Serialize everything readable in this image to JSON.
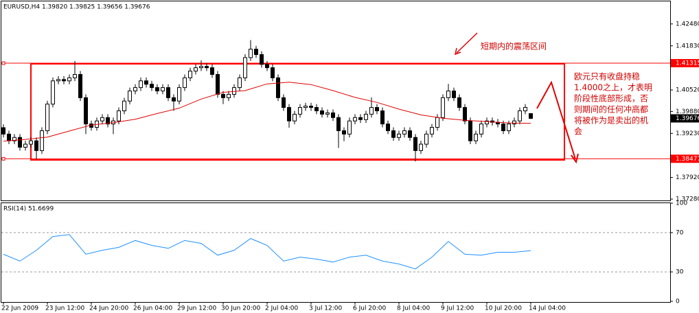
{
  "chart_data": [
    {
      "type": "candlestick",
      "title": "EURUSD,H4  1.39820 1.39825 1.39656 1.39676",
      "categories": [
        "22 Jun 2009",
        null,
        null,
        null,
        null,
        null,
        null,
        null,
        "23 Jun 12:00",
        null,
        null,
        null,
        null,
        null,
        null,
        null,
        "24 Jun 20:00",
        null,
        null,
        null,
        null,
        null,
        null,
        null,
        "26 Jun 04:00",
        null,
        null,
        null,
        null,
        null,
        null,
        null,
        "29 Jun 12:00",
        null,
        null,
        null,
        null,
        null,
        null,
        null,
        "30 Jun 20:00",
        null,
        null,
        null,
        null,
        null,
        null,
        null,
        "2 Jul 04:00",
        null,
        null,
        null,
        null,
        null,
        null,
        null,
        "3 Jul 12:00",
        null,
        null,
        null,
        null,
        null,
        null,
        null,
        "6 Jul 20:00",
        null,
        null,
        null,
        null,
        null,
        null,
        null,
        "8 Jul 04:00",
        null,
        null,
        null,
        null,
        null,
        null,
        null,
        "9 Jul 12:00",
        null,
        null,
        null,
        null,
        null,
        null,
        null,
        "10 Jul 20:00",
        null,
        null,
        null,
        null,
        null,
        null,
        null,
        "14 Jul 04:00"
      ],
      "open": [
        1.394,
        1.3921,
        1.3901,
        1.3911,
        1.3882,
        1.3891,
        1.3901,
        1.3872,
        1.3931,
        1.401,
        1.4079,
        1.4083,
        1.4079,
        1.4088,
        1.4098,
        1.4029,
        1.3951,
        1.3941,
        1.396,
        1.397,
        1.3951,
        1.396,
        1.399,
        1.4019,
        1.4049,
        1.4059,
        1.4079,
        1.4069,
        1.4059,
        1.4049,
        1.4059,
        1.4029,
        1.4019,
        1.4059,
        1.4088,
        1.4108,
        1.4118,
        1.4122,
        1.4118,
        1.4098,
        1.4039,
        1.4029,
        1.4039,
        1.4059,
        1.4088,
        1.4148,
        1.4173,
        1.4157,
        1.4128,
        1.4118,
        1.4088,
        1.4029,
        1.4,
        1.396,
        1.398,
        1.4,
        1.4004,
        1.4,
        1.399,
        1.398,
        1.3984,
        1.397,
        1.3931,
        1.3921,
        1.396,
        1.397,
        1.3964,
        1.398,
        1.4,
        1.399,
        1.3951,
        1.3931,
        1.3911,
        1.3921,
        1.3931,
        1.3911,
        1.3872,
        1.3891,
        1.3921,
        1.3941,
        1.397,
        1.4029,
        1.4049,
        1.4029,
        1.4,
        1.396,
        1.3901,
        1.3921,
        1.3951,
        1.396,
        1.3956,
        1.3951,
        1.3931,
        1.3951,
        1.396,
        1.399,
        1.3982
      ],
      "high": [
        1.395,
        1.3931,
        1.3921,
        1.3921,
        1.3901,
        1.3911,
        1.3911,
        1.3941,
        1.402,
        1.4089,
        1.4093,
        1.4093,
        1.4098,
        1.4138,
        1.4108,
        1.4039,
        1.3961,
        1.397,
        1.398,
        1.398,
        1.397,
        1.4,
        1.4029,
        1.4059,
        1.4069,
        1.4089,
        1.4089,
        1.4079,
        1.4069,
        1.4069,
        1.4069,
        1.4039,
        1.4069,
        1.4098,
        1.4118,
        1.4128,
        1.414,
        1.4132,
        1.4128,
        1.4108,
        1.4049,
        1.4049,
        1.4069,
        1.4098,
        1.4158,
        1.42,
        1.4183,
        1.4167,
        1.4138,
        1.4128,
        1.4098,
        1.4039,
        1.401,
        1.399,
        1.401,
        1.4014,
        1.4014,
        1.401,
        1.4,
        1.3994,
        1.3994,
        1.398,
        1.3941,
        1.397,
        1.398,
        1.398,
        1.399,
        1.403,
        1.401,
        1.4,
        1.3961,
        1.3941,
        1.3931,
        1.3941,
        1.3941,
        1.3921,
        1.3901,
        1.3931,
        1.3951,
        1.398,
        1.4039,
        1.407,
        1.4059,
        1.4039,
        1.401,
        1.397,
        1.3931,
        1.3961,
        1.397,
        1.397,
        1.3966,
        1.3961,
        1.3961,
        1.397,
        1.4,
        1.401,
        1.39825
      ],
      "low": [
        1.3911,
        1.3891,
        1.3891,
        1.3872,
        1.3872,
        1.3881,
        1.3846,
        1.3862,
        1.3921,
        1.4,
        1.4069,
        1.4069,
        1.4069,
        1.4078,
        1.4019,
        1.3921,
        1.3931,
        1.3931,
        1.395,
        1.3941,
        1.3921,
        1.395,
        1.398,
        1.4009,
        1.4039,
        1.4049,
        1.4059,
        1.4049,
        1.4039,
        1.4039,
        1.4019,
        1.399,
        1.4009,
        1.4049,
        1.4078,
        1.4098,
        1.4108,
        1.4108,
        1.4088,
        1.4029,
        1.401,
        1.4019,
        1.4029,
        1.4049,
        1.4078,
        1.4138,
        1.4147,
        1.4118,
        1.4108,
        1.4078,
        1.4019,
        1.399,
        1.394,
        1.395,
        1.397,
        1.399,
        1.399,
        1.398,
        1.397,
        1.397,
        1.396,
        1.388,
        1.39,
        1.3911,
        1.395,
        1.3954,
        1.3954,
        1.397,
        1.398,
        1.3941,
        1.3921,
        1.3901,
        1.3901,
        1.3911,
        1.3901,
        1.384,
        1.3862,
        1.3881,
        1.3911,
        1.3931,
        1.396,
        1.4019,
        1.4019,
        1.399,
        1.395,
        1.3891,
        1.3891,
        1.3911,
        1.3941,
        1.3946,
        1.3941,
        1.3921,
        1.3921,
        1.3941,
        1.395,
        1.398,
        1.39656
      ],
      "close": [
        1.3921,
        1.3901,
        1.3911,
        1.3882,
        1.3891,
        1.3901,
        1.3872,
        1.3931,
        1.401,
        1.4079,
        1.4083,
        1.4079,
        1.4088,
        1.4098,
        1.4029,
        1.3951,
        1.3941,
        1.396,
        1.397,
        1.3951,
        1.396,
        1.399,
        1.4019,
        1.4049,
        1.4059,
        1.4079,
        1.4069,
        1.4059,
        1.4049,
        1.4059,
        1.4029,
        1.4019,
        1.4059,
        1.4088,
        1.4108,
        1.4118,
        1.4122,
        1.4118,
        1.4098,
        1.4039,
        1.4029,
        1.4039,
        1.4059,
        1.4088,
        1.4148,
        1.4173,
        1.4157,
        1.4128,
        1.4118,
        1.4088,
        1.4029,
        1.4,
        1.396,
        1.398,
        1.4,
        1.4004,
        1.4,
        1.399,
        1.398,
        1.3984,
        1.397,
        1.3931,
        1.3921,
        1.396,
        1.397,
        1.3964,
        1.398,
        1.4,
        1.399,
        1.3951,
        1.3931,
        1.3911,
        1.3921,
        1.3931,
        1.3911,
        1.3872,
        1.3891,
        1.3921,
        1.3941,
        1.397,
        1.4029,
        1.4049,
        1.4029,
        1.4,
        1.396,
        1.3901,
        1.3921,
        1.3951,
        1.396,
        1.3956,
        1.3951,
        1.3931,
        1.3951,
        1.396,
        1.399,
        1.4,
        1.39676
      ],
      "ma": {
        "color": "#e00000",
        "x": [
          0,
          4,
          8,
          12,
          16,
          20,
          24,
          28,
          32,
          36,
          40,
          44,
          48,
          52,
          56,
          60,
          64,
          68,
          72,
          76,
          80,
          84,
          88,
          92,
          96
        ],
        "values": [
          1.39,
          1.3905,
          1.3912,
          1.393,
          1.3948,
          1.3955,
          1.3965,
          1.3982,
          1.3998,
          1.4025,
          1.4045,
          1.405,
          1.407,
          1.4075,
          1.4068,
          1.405,
          1.403,
          1.4015,
          1.3995,
          1.3978,
          1.3968,
          1.3962,
          1.3958,
          1.3954,
          1.3953
        ]
      },
      "levels": [
        1.41315,
        1.38477
      ],
      "level_color": "#ff0000",
      "ylim": [
        1.3724,
        1.4317
      ],
      "yticks": [
        {
          "value": 1.3728,
          "label": "1.37280"
        },
        {
          "value": 1.3792,
          "label": "1.37920"
        },
        {
          "value": 1.3923,
          "label": "1.39230"
        },
        {
          "value": 1.3988,
          "label": "1.39880"
        },
        {
          "value": 1.4052,
          "label": "1.40520"
        },
        {
          "value": 1.4183,
          "label": "1.41830"
        },
        {
          "value": 1.4248,
          "label": "1.42480"
        }
      ],
      "annotations": [
        {
          "text": "短期内的震荡区间"
        },
        {
          "lines": [
            "欧元只有收盘持稳",
            "1.4000之上，才表明",
            "阶段性底部形成，否",
            "则期间的任何冲高都",
            "将被作为是卖出的机",
            "会"
          ]
        }
      ]
    },
    {
      "type": "line",
      "title": "RSI(14) 51.6699",
      "color": "#1e90ff",
      "x": [
        0,
        3,
        6,
        9,
        12,
        15,
        18,
        21,
        24,
        27,
        30,
        33,
        36,
        39,
        42,
        45,
        48,
        51,
        54,
        57,
        60,
        63,
        66,
        69,
        72,
        75,
        78,
        81,
        84,
        87,
        90,
        93,
        96
      ],
      "values": [
        48,
        41,
        52,
        66,
        68,
        48,
        52,
        55,
        62,
        57,
        54,
        62,
        59,
        47,
        52,
        64,
        57,
        41,
        45,
        43,
        40,
        45,
        47,
        41,
        38,
        33,
        45,
        61,
        48,
        47,
        50,
        50,
        51.6699
      ],
      "ylim": [
        0,
        100
      ],
      "yticks": [
        0,
        30,
        70,
        100
      ]
    }
  ]
}
